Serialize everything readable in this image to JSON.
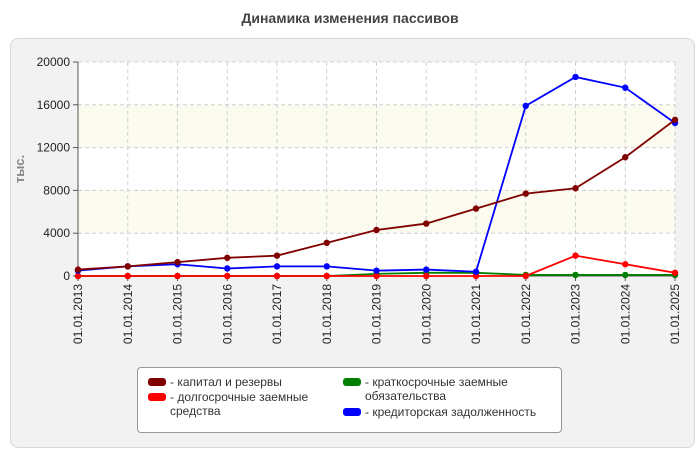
{
  "chart_data": {
    "type": "line",
    "title": "Динамика изменения пассивов",
    "ylabel": "тыс.",
    "ylim": [
      0,
      20000
    ],
    "yticks": [
      0,
      4000,
      8000,
      12000,
      16000,
      20000
    ],
    "categories": [
      "01.01.2013",
      "01.01.2014",
      "01.01.2015",
      "01.01.2016",
      "01.01.2017",
      "01.01.2018",
      "01.01.2019",
      "01.01.2020",
      "01.01.2021",
      "01.01.2022",
      "01.01.2023",
      "01.01.2024",
      "01.01.2025"
    ],
    "legend_placement": "bottom",
    "grid": true,
    "series": [
      {
        "name": "капитал и резервы",
        "color": "#800000",
        "values": [
          600,
          900,
          1300,
          1700,
          1900,
          3100,
          4300,
          4900,
          6300,
          7700,
          8200,
          11100,
          14600
        ]
      },
      {
        "name": "долгосрочные заемные средства",
        "color": "#ff0000",
        "values": [
          0,
          0,
          0,
          0,
          0,
          0,
          0,
          0,
          0,
          0,
          1900,
          1100,
          300
        ]
      },
      {
        "name": "краткосрочные заемные обязательства",
        "color": "#008000",
        "values": [
          0,
          0,
          0,
          0,
          0,
          0,
          200,
          300,
          300,
          100,
          100,
          100,
          100
        ]
      },
      {
        "name": "кредиторская задолженность",
        "color": "#0000ff",
        "values": [
          500,
          900,
          1100,
          700,
          900,
          900,
          500,
          600,
          400,
          15900,
          18600,
          17600,
          14300
        ]
      }
    ]
  },
  "legend": {
    "items": [
      {
        "label": "- капитал и резервы",
        "color": "#800000"
      },
      {
        "label": "- долгосрочные заемные средства",
        "color": "#ff0000"
      },
      {
        "label": "- краткосрочные заемные обязательства",
        "color": "#008000"
      },
      {
        "label": "- кредиторская задолженность",
        "color": "#0000ff"
      }
    ]
  }
}
